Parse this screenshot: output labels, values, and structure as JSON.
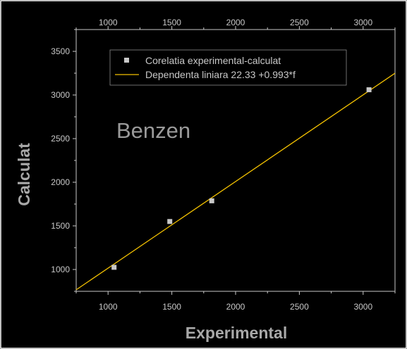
{
  "chart_data": {
    "type": "scatter",
    "title": "",
    "annotation": "Benzen",
    "xlabel": "Experimental",
    "ylabel": "Calculat",
    "xlim": [
      750,
      3250
    ],
    "ylim": [
      750,
      3750
    ],
    "x_ticks": [
      1000,
      1500,
      2000,
      2500,
      3000
    ],
    "y_ticks": [
      1000,
      1500,
      2000,
      2500,
      3000,
      3500
    ],
    "legend_position": "top-center",
    "grid": false,
    "series": [
      {
        "name": "Corelatia experimental-calculat",
        "kind": "scatter",
        "color": "#c8c8c8",
        "x": [
          1047,
          1484,
          1813,
          3046
        ],
        "y": [
          1025,
          1550,
          1787,
          3060
        ]
      },
      {
        "name": "Dependenta liniara 22.33 +0.993*f",
        "kind": "line",
        "color": "#f2c000",
        "intercept": 22.33,
        "slope": 0.993
      }
    ]
  },
  "colors": {
    "background": "#000000",
    "frame": "#ffffff",
    "axis": "#c8c8c8",
    "marker": "#c8c8c8",
    "fit_line": "#f2c000",
    "legend_border": "#8a8a8a"
  }
}
